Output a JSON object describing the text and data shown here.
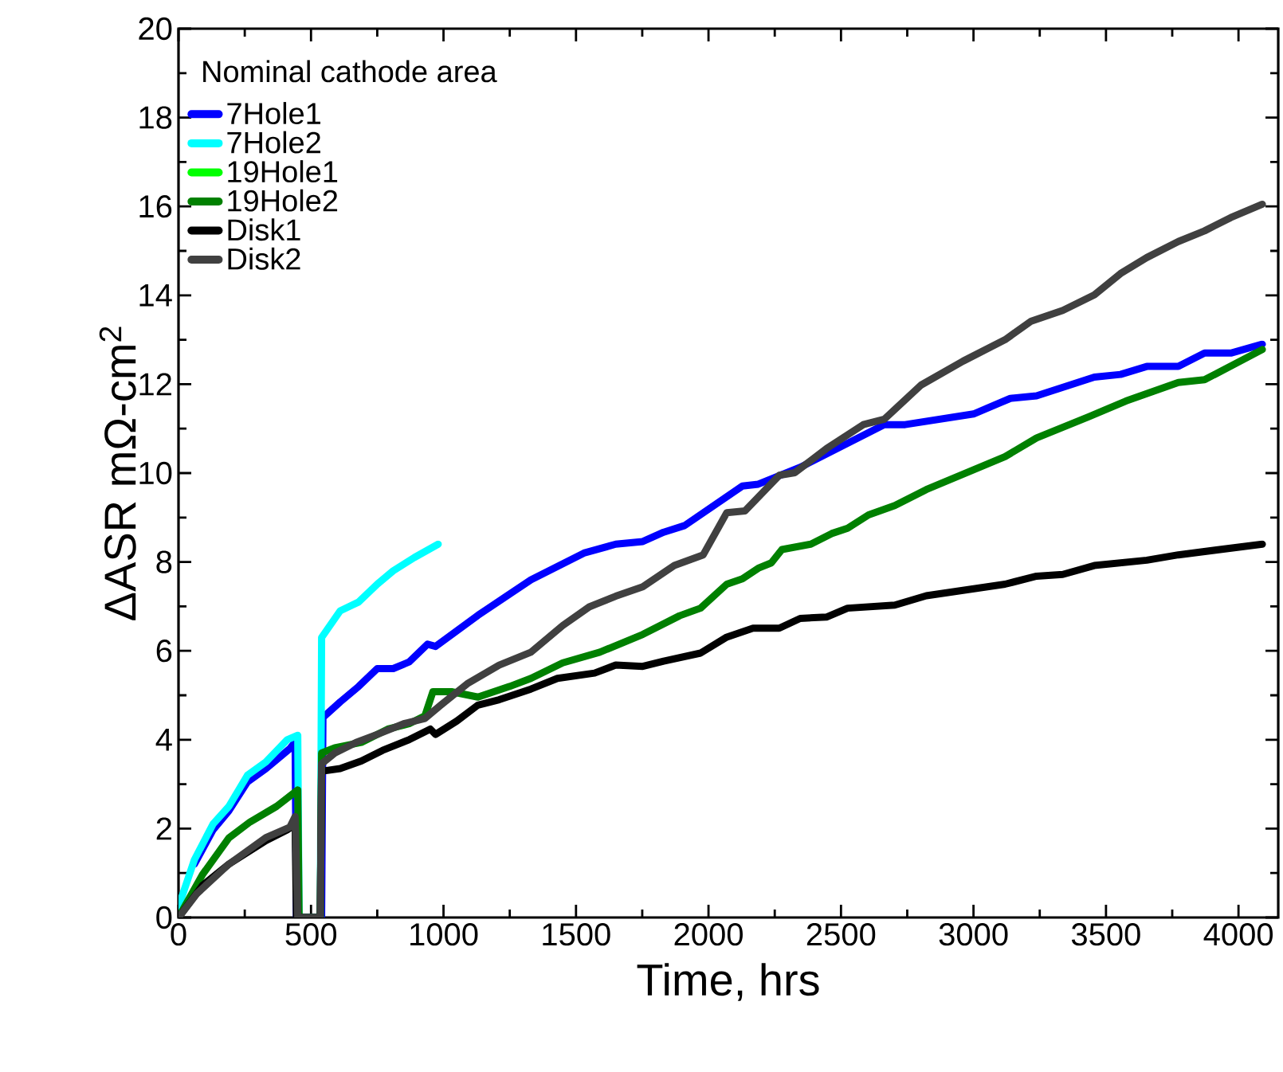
{
  "chart_data": {
    "type": "line",
    "xlabel": "Time, hrs",
    "ylabel": "ΔASR mΩ-cm$^{2}$",
    "legend_title": "Nominal cathode area",
    "legend": "top left",
    "grid": false,
    "xlim": [
      0,
      4150
    ],
    "ylim": [
      0,
      20
    ],
    "xticks": [
      0,
      500,
      1000,
      1500,
      2000,
      2500,
      3000,
      3500,
      4000
    ],
    "yticks": [
      0,
      2,
      4,
      6,
      8,
      10,
      12,
      14,
      16,
      18,
      20
    ],
    "series": [
      {
        "name": "7Hole1",
        "color": "#0000ff",
        "x": [
          60,
          130,
          190,
          260,
          330,
          420,
          440,
          445,
          540,
          545,
          610,
          680,
          750,
          810,
          870,
          940,
          970,
          1050,
          1130,
          1230,
          1330,
          1430,
          1530,
          1650,
          1752,
          1831,
          1910,
          2128,
          2188,
          2346,
          2663,
          2742,
          3000,
          3139,
          3238,
          3456,
          3555,
          3654,
          3773,
          3872,
          3971,
          4090
        ],
        "values": [
          1.2,
          1.97,
          2.4,
          3.05,
          3.35,
          3.8,
          3.95,
          0,
          0,
          4.5,
          4.85,
          5.2,
          5.6,
          5.6,
          5.75,
          6.15,
          6.1,
          6.45,
          6.8,
          7.2,
          7.6,
          7.9,
          8.2,
          8.4,
          8.46,
          8.67,
          8.82,
          9.71,
          9.75,
          10.13,
          11.09,
          11.09,
          11.33,
          11.68,
          11.74,
          12.16,
          12.22,
          12.4,
          12.4,
          12.7,
          12.7,
          12.9
        ]
      },
      {
        "name": "7Hole2",
        "color": "#00ffff",
        "x": [
          0,
          60,
          130,
          190,
          260,
          330,
          410,
          450,
          455,
          535,
          540,
          610,
          680,
          750,
          810,
          890,
          980
        ],
        "values": [
          0.24,
          1.3,
          2.1,
          2.5,
          3.2,
          3.5,
          4.0,
          4.1,
          0,
          0,
          6.3,
          6.9,
          7.1,
          7.5,
          7.8,
          8.1,
          8.4
        ]
      },
      {
        "name": "19Hole1",
        "color": "#00ff00"
      },
      {
        "name": "19Hole2",
        "color": "#008000",
        "x": [
          0,
          90,
          190,
          270,
          370,
          450,
          455,
          535,
          540,
          590,
          690,
          790,
          870,
          930,
          960,
          1030,
          1130,
          1250,
          1330,
          1450,
          1590,
          1752,
          1891,
          1970,
          2069,
          2128,
          2188,
          2237,
          2277,
          2386,
          2465,
          2525,
          2604,
          2703,
          2822,
          3119,
          3238,
          3436,
          3575,
          3773,
          3872,
          4090
        ],
        "values": [
          0,
          0.96,
          1.79,
          2.15,
          2.5,
          2.87,
          0,
          0,
          3.7,
          3.82,
          3.94,
          4.24,
          4.36,
          4.54,
          5.08,
          5.08,
          4.96,
          5.2,
          5.38,
          5.73,
          5.97,
          6.37,
          6.79,
          6.96,
          7.5,
          7.62,
          7.86,
          7.98,
          8.28,
          8.4,
          8.64,
          8.76,
          9.06,
          9.27,
          9.63,
          10.37,
          10.79,
          11.27,
          11.62,
          12.04,
          12.1,
          12.78
        ]
      },
      {
        "name": "Disk1",
        "color": "#000000",
        "x": [
          0,
          90,
          190,
          330,
          410,
          440,
          445,
          535,
          540,
          610,
          690,
          770,
          870,
          950,
          970,
          1050,
          1130,
          1210,
          1330,
          1430,
          1570,
          1650,
          1752,
          1831,
          1970,
          2069,
          2168,
          2267,
          2346,
          2445,
          2525,
          2703,
          2822,
          3119,
          3238,
          3337,
          3456,
          3654,
          3773,
          4090
        ],
        "values": [
          0,
          0.72,
          1.2,
          1.73,
          1.97,
          2.09,
          0,
          0,
          3.29,
          3.35,
          3.52,
          3.76,
          4.0,
          4.24,
          4.12,
          4.42,
          4.78,
          4.9,
          5.14,
          5.38,
          5.5,
          5.68,
          5.65,
          5.77,
          5.95,
          6.31,
          6.51,
          6.51,
          6.73,
          6.76,
          6.96,
          7.03,
          7.24,
          7.5,
          7.68,
          7.72,
          7.92,
          8.04,
          8.16,
          8.4
        ]
      },
      {
        "name": "Disk2",
        "color": "#404040",
        "x": [
          0,
          70,
          190,
          330,
          420,
          440,
          450,
          535,
          540,
          590,
          670,
          750,
          850,
          930,
          990,
          1090,
          1210,
          1330,
          1450,
          1550,
          1650,
          1752,
          1871,
          1980,
          2069,
          2138,
          2267,
          2326,
          2445,
          2584,
          2663,
          2802,
          2961,
          3119,
          3218,
          3337,
          3456,
          3555,
          3654,
          3773,
          3872,
          3971,
          4090
        ],
        "values": [
          0,
          0.54,
          1.2,
          1.8,
          2.03,
          2.27,
          0,
          0,
          3.46,
          3.7,
          3.94,
          4.12,
          4.36,
          4.48,
          4.78,
          5.26,
          5.68,
          5.97,
          6.57,
          6.99,
          7.23,
          7.44,
          7.92,
          8.16,
          9.11,
          9.15,
          9.95,
          10.01,
          10.55,
          11.09,
          11.21,
          11.98,
          12.52,
          13.0,
          13.42,
          13.66,
          14.01,
          14.49,
          14.85,
          15.21,
          15.45,
          15.75,
          16.05
        ]
      }
    ]
  }
}
